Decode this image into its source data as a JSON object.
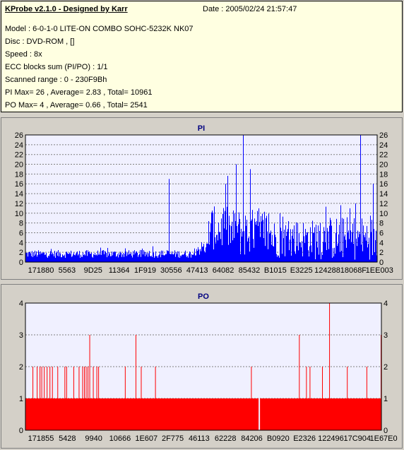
{
  "header": {
    "title": "KProbe v2.1.0 - Designed by Karr",
    "date": "Date : 2005/02/24 21:57:47",
    "lines": [
      "Model : 6-0-1-0 LITE-ON COMBO SOHC-5232K NK07",
      "Disc : DVD-ROM ,  []",
      "Speed : 8x",
      "ECC blocks sum (PI/PO) : 1/1",
      "Scanned range : 0 - 230F9Bh",
      "PI Max= 26 , Average= 2.83 , Total= 10961",
      "PO Max= 4 , Average= 0.66 , Total= 2541"
    ]
  },
  "colors": {
    "pi_bar": "#0000ff",
    "po_bar": "#ff0000",
    "plot_bg": "#f0f0ff",
    "grid": "#808080"
  },
  "chart_data": [
    {
      "type": "bar",
      "title": "PI",
      "ylim": [
        0,
        26
      ],
      "yticks": [
        0,
        2,
        4,
        6,
        8,
        10,
        12,
        14,
        16,
        18,
        20,
        22,
        24,
        26
      ],
      "xtick_labels": [
        "171880",
        "5563",
        "9D25",
        "11364",
        "1F919",
        "30556",
        "47413",
        "64082",
        "85432",
        "B1015",
        "E3225",
        "124288",
        "18068F",
        "1EE003"
      ],
      "grid": true,
      "peaks": [
        {
          "x": 0.408,
          "value": 17
        },
        {
          "x": 0.84,
          "value": 8
        },
        {
          "x": 0.94,
          "value": 12
        },
        {
          "x": 0.953,
          "value": 26
        },
        {
          "x": 0.99,
          "value": 16
        }
      ],
      "regions": [
        {
          "from": 0.0,
          "to": 0.48,
          "base": 1.5,
          "var": 1.6
        },
        {
          "from": 0.48,
          "to": 0.52,
          "base": 2.5,
          "var": 3
        },
        {
          "from": 0.52,
          "to": 0.58,
          "base": 6,
          "var": 9
        },
        {
          "from": 0.58,
          "to": 0.7,
          "base": 5,
          "var": 10
        },
        {
          "from": 0.7,
          "to": 0.82,
          "base": 4,
          "var": 8
        },
        {
          "from": 0.82,
          "to": 1.0,
          "base": 4,
          "var": 9
        }
      ],
      "local_peaks": [
        {
          "x": 0.62,
          "value": 26
        },
        {
          "x": 0.64,
          "value": 19
        },
        {
          "x": 0.57,
          "value": 16
        },
        {
          "x": 0.6,
          "value": 20
        }
      ]
    },
    {
      "type": "bar",
      "title": "PO",
      "ylim": [
        0,
        4
      ],
      "yticks": [
        0,
        1,
        2,
        3,
        4
      ],
      "xtick_labels": [
        "171855",
        "5428",
        "9940",
        "10666",
        "1E607",
        "2F775",
        "46113",
        "62228",
        "84206",
        "B0920",
        "E2326",
        "122496",
        "17C904",
        "1E67E0"
      ],
      "grid": true,
      "baseline": 1,
      "gap_x": 0.655,
      "spikes": [
        {
          "x": 0.02,
          "value": 2
        },
        {
          "x": 0.032,
          "value": 2
        },
        {
          "x": 0.04,
          "value": 2
        },
        {
          "x": 0.045,
          "value": 2
        },
        {
          "x": 0.052,
          "value": 2
        },
        {
          "x": 0.06,
          "value": 2
        },
        {
          "x": 0.068,
          "value": 2
        },
        {
          "x": 0.075,
          "value": 2
        },
        {
          "x": 0.09,
          "value": 2
        },
        {
          "x": 0.11,
          "value": 2
        },
        {
          "x": 0.115,
          "value": 2
        },
        {
          "x": 0.135,
          "value": 2
        },
        {
          "x": 0.15,
          "value": 2
        },
        {
          "x": 0.16,
          "value": 2
        },
        {
          "x": 0.165,
          "value": 2
        },
        {
          "x": 0.17,
          "value": 2
        },
        {
          "x": 0.175,
          "value": 2
        },
        {
          "x": 0.18,
          "value": 3
        },
        {
          "x": 0.19,
          "value": 2
        },
        {
          "x": 0.2,
          "value": 2
        },
        {
          "x": 0.205,
          "value": 2
        },
        {
          "x": 0.28,
          "value": 2
        },
        {
          "x": 0.31,
          "value": 3
        },
        {
          "x": 0.325,
          "value": 2
        },
        {
          "x": 0.365,
          "value": 2
        },
        {
          "x": 0.635,
          "value": 2
        },
        {
          "x": 0.77,
          "value": 3
        },
        {
          "x": 0.79,
          "value": 2
        },
        {
          "x": 0.8,
          "value": 2
        },
        {
          "x": 0.835,
          "value": 2
        },
        {
          "x": 0.855,
          "value": 4
        },
        {
          "x": 0.905,
          "value": 2
        },
        {
          "x": 0.96,
          "value": 2
        },
        {
          "x": 1.0,
          "value": 3
        }
      ]
    }
  ]
}
